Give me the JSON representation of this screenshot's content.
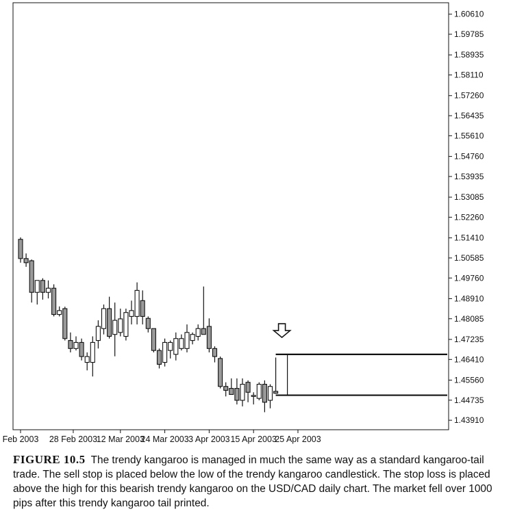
{
  "chart_data": {
    "type": "candlestick",
    "title": "",
    "xlabel": "",
    "ylabel": "",
    "instrument": "USD/CAD daily",
    "ylim": [
      1.4352,
      1.6108
    ],
    "y_ticks": [
      "1.60610",
      "1.59785",
      "1.58935",
      "1.58110",
      "1.57260",
      "1.56435",
      "1.55610",
      "1.54760",
      "1.53935",
      "1.53085",
      "1.52260",
      "1.51410",
      "1.50585",
      "1.49760",
      "1.48910",
      "1.48085",
      "1.47235",
      "1.46410",
      "1.45560",
      "1.44735",
      "1.43910"
    ],
    "x_ticks": [
      {
        "label": "Feb 2003",
        "index": 0
      },
      {
        "label": "28 Feb 2003",
        "index": 9.5
      },
      {
        "label": "12 Mar 2003",
        "index": 18
      },
      {
        "label": "24 Mar 2003",
        "index": 26
      },
      {
        "label": "3 Apr 2003",
        "index": 34
      },
      {
        "label": "15 Apr 2003",
        "index": 42
      },
      {
        "label": "25 Apr 2003",
        "index": 50
      }
    ],
    "candles": [
      {
        "o": 1.5135,
        "h": 1.5143,
        "l": 1.5039,
        "c": 1.5056
      },
      {
        "o": 1.5056,
        "h": 1.5077,
        "l": 1.5022,
        "c": 1.5039
      },
      {
        "o": 1.5047,
        "h": 1.5052,
        "l": 1.4875,
        "c": 1.4917
      },
      {
        "o": 1.4917,
        "h": 1.4966,
        "l": 1.4867,
        "c": 1.4966
      },
      {
        "o": 1.4966,
        "h": 1.4975,
        "l": 1.4887,
        "c": 1.4917
      },
      {
        "o": 1.4917,
        "h": 1.4966,
        "l": 1.4892,
        "c": 1.4934
      },
      {
        "o": 1.4934,
        "h": 1.495,
        "l": 1.4818,
        "c": 1.4826
      },
      {
        "o": 1.4826,
        "h": 1.4859,
        "l": 1.4818,
        "c": 1.4842
      },
      {
        "o": 1.485,
        "h": 1.4858,
        "l": 1.4719,
        "c": 1.4727
      },
      {
        "o": 1.4719,
        "h": 1.4752,
        "l": 1.467,
        "c": 1.4686
      },
      {
        "o": 1.4686,
        "h": 1.4736,
        "l": 1.4678,
        "c": 1.4711
      },
      {
        "o": 1.4711,
        "h": 1.4727,
        "l": 1.4637,
        "c": 1.4653
      },
      {
        "o": 1.4629,
        "h": 1.467,
        "l": 1.4596,
        "c": 1.4653
      },
      {
        "o": 1.4629,
        "h": 1.4736,
        "l": 1.4571,
        "c": 1.4711
      },
      {
        "o": 1.4719,
        "h": 1.4802,
        "l": 1.4686,
        "c": 1.4777
      },
      {
        "o": 1.4768,
        "h": 1.4867,
        "l": 1.4744,
        "c": 1.485
      },
      {
        "o": 1.485,
        "h": 1.4899,
        "l": 1.4727,
        "c": 1.4736
      },
      {
        "o": 1.4744,
        "h": 1.4875,
        "l": 1.4654,
        "c": 1.4802
      },
      {
        "o": 1.4752,
        "h": 1.485,
        "l": 1.4736,
        "c": 1.4808
      },
      {
        "o": 1.4736,
        "h": 1.485,
        "l": 1.4719,
        "c": 1.4834
      },
      {
        "o": 1.4818,
        "h": 1.4883,
        "l": 1.4785,
        "c": 1.4842
      },
      {
        "o": 1.4818,
        "h": 1.4958,
        "l": 1.4785,
        "c": 1.4925
      },
      {
        "o": 1.4883,
        "h": 1.4925,
        "l": 1.4785,
        "c": 1.4818
      },
      {
        "o": 1.481,
        "h": 1.4818,
        "l": 1.4752,
        "c": 1.4768
      },
      {
        "o": 1.4768,
        "h": 1.4768,
        "l": 1.467,
        "c": 1.4678
      },
      {
        "o": 1.4678,
        "h": 1.4686,
        "l": 1.4604,
        "c": 1.4621
      },
      {
        "o": 1.4629,
        "h": 1.4727,
        "l": 1.4612,
        "c": 1.4711
      },
      {
        "o": 1.4678,
        "h": 1.4719,
        "l": 1.4645,
        "c": 1.4711
      },
      {
        "o": 1.4662,
        "h": 1.4752,
        "l": 1.4637,
        "c": 1.4727
      },
      {
        "o": 1.4686,
        "h": 1.4744,
        "l": 1.4678,
        "c": 1.4727
      },
      {
        "o": 1.4686,
        "h": 1.4785,
        "l": 1.467,
        "c": 1.4752
      },
      {
        "o": 1.4719,
        "h": 1.4752,
        "l": 1.4703,
        "c": 1.4744
      },
      {
        "o": 1.4736,
        "h": 1.4785,
        "l": 1.4719,
        "c": 1.4768
      },
      {
        "o": 1.4768,
        "h": 1.4941,
        "l": 1.4744,
        "c": 1.4744
      },
      {
        "o": 1.4777,
        "h": 1.481,
        "l": 1.467,
        "c": 1.4686
      },
      {
        "o": 1.4686,
        "h": 1.4695,
        "l": 1.4629,
        "c": 1.4653
      },
      {
        "o": 1.4645,
        "h": 1.4653,
        "l": 1.4522,
        "c": 1.453
      },
      {
        "o": 1.453,
        "h": 1.4547,
        "l": 1.4489,
        "c": 1.4514
      },
      {
        "o": 1.4522,
        "h": 1.4563,
        "l": 1.4497,
        "c": 1.4497
      },
      {
        "o": 1.4522,
        "h": 1.4563,
        "l": 1.4456,
        "c": 1.4473
      },
      {
        "o": 1.4473,
        "h": 1.4563,
        "l": 1.4448,
        "c": 1.4539
      },
      {
        "o": 1.4547,
        "h": 1.4555,
        "l": 1.4465,
        "c": 1.4506
      },
      {
        "o": 1.4489,
        "h": 1.4506,
        "l": 1.4456,
        "c": 1.4493
      },
      {
        "o": 1.4481,
        "h": 1.4547,
        "l": 1.4473,
        "c": 1.4539
      },
      {
        "o": 1.4539,
        "h": 1.4555,
        "l": 1.4424,
        "c": 1.4465
      },
      {
        "o": 1.4473,
        "h": 1.4539,
        "l": 1.444,
        "c": 1.453
      },
      {
        "o": 1.451,
        "h": 1.4649,
        "l": 1.45,
        "c": 1.4502
      }
    ],
    "annotations": [
      {
        "type": "arrow-down",
        "candle_index": 46,
        "label": ""
      },
      {
        "type": "level",
        "name": "stop loss",
        "value": 1.4662
      },
      {
        "type": "level",
        "name": "sell stop",
        "value": 1.4494
      }
    ]
  },
  "caption": {
    "label": "FIGURE 10.5",
    "text": "The trendy kangaroo is managed in much the same way as a standard kangaroo-tail trade. The sell stop is placed below the low of the trendy kangaroo candlestick. The stop loss is placed above the high for this bearish trendy kangaroo on the USD/CAD daily chart. The market fell over 1000 pips after this trendy kangaroo tail printed."
  },
  "colors": {
    "bearish_fill": "#9a9a9a",
    "bullish_fill": "#ffffff",
    "outline": "#111111"
  }
}
